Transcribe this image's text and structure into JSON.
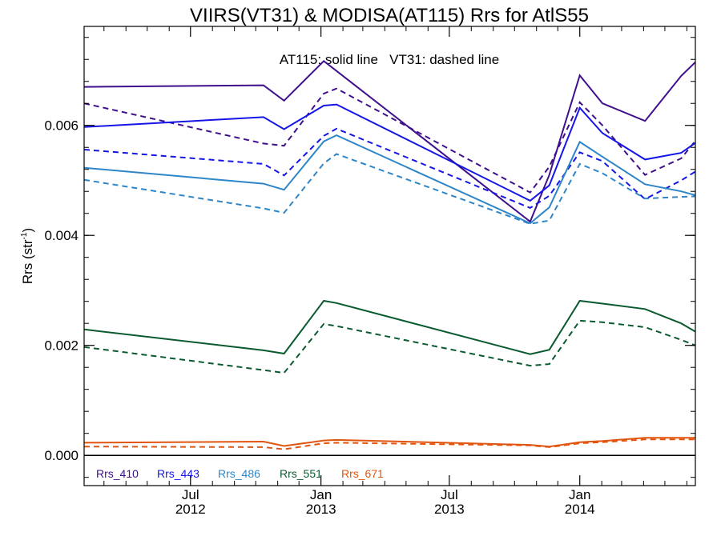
{
  "chart_data": {
    "type": "line",
    "title": "VIIRS(VT31) & MODISA(AT115)  Rrs for AtlS55",
    "annotation": "AT115: solid line   VT31: dashed line",
    "ylabel": "Rrs (str",
    "ylabel_superscript": "-1",
    "ylabel_close": ")",
    "ylim": [
      -0.00055,
      0.0078
    ],
    "xlim": [
      "2012-02-02",
      "2014-06-13"
    ],
    "y_ticks": [
      {
        "value": 0.0,
        "label": "0.000"
      },
      {
        "value": 0.002,
        "label": "0.002"
      },
      {
        "value": 0.004,
        "label": "0.004"
      },
      {
        "value": 0.006,
        "label": "0.006"
      }
    ],
    "y_minor_step": 0.0004,
    "x_ticks": [
      {
        "date": "2012-07-01",
        "month": "Jul",
        "year": "2012"
      },
      {
        "date": "2013-01-01",
        "month": "Jan",
        "year": "2013"
      },
      {
        "date": "2013-07-01",
        "month": "Jul",
        "year": "2013"
      },
      {
        "date": "2014-01-01",
        "month": "Jan",
        "year": "2014"
      }
    ],
    "x_minor_months": [
      "2012-03-01",
      "2012-04-01",
      "2012-05-01",
      "2012-06-01",
      "2012-08-01",
      "2012-09-01",
      "2012-10-01",
      "2012-11-01",
      "2012-12-01",
      "2013-02-01",
      "2013-03-01",
      "2013-04-01",
      "2013-05-01",
      "2013-06-01",
      "2013-08-01",
      "2013-09-01",
      "2013-10-01",
      "2013-11-01",
      "2013-12-01",
      "2014-02-01",
      "2014-03-01",
      "2014-04-01",
      "2014-05-01",
      "2014-06-01"
    ],
    "x_dates": [
      "2012-02-02",
      "2012-10-12",
      "2012-11-10",
      "2013-01-05",
      "2013-01-23",
      "2013-10-23",
      "2013-11-19",
      "2014-01-01",
      "2014-02-02",
      "2014-04-03",
      "2014-05-24",
      "2014-06-13"
    ],
    "series": [
      {
        "name": "Rrs_410",
        "color": "#3f0f8c",
        "style": "solid",
        "values": [
          0.0067,
          0.00673,
          0.00645,
          0.00717,
          0.00699,
          0.00425,
          0.0051,
          0.00691,
          0.0064,
          0.00608,
          0.0069,
          0.00715
        ]
      },
      {
        "name": "Rrs_410",
        "color": "#3f0f8c",
        "style": "dashed",
        "values": [
          0.0064,
          0.00567,
          0.00563,
          0.00658,
          0.00667,
          0.00478,
          0.00525,
          0.00642,
          0.006,
          0.0051,
          0.0054,
          0.00572
        ]
      },
      {
        "name": "Rrs_443",
        "color": "#1515e8",
        "style": "solid",
        "values": [
          0.00597,
          0.00615,
          0.00593,
          0.00636,
          0.00638,
          0.00463,
          0.00491,
          0.00632,
          0.00586,
          0.00538,
          0.0055,
          0.00568
        ]
      },
      {
        "name": "Rrs_443",
        "color": "#1515e8",
        "style": "dashed",
        "values": [
          0.00556,
          0.0053,
          0.00509,
          0.00581,
          0.00594,
          0.0045,
          0.00472,
          0.00551,
          0.00535,
          0.00466,
          0.005,
          0.00516
        ]
      },
      {
        "name": "Rrs_486",
        "color": "#2e86c8",
        "style": "solid",
        "values": [
          0.00523,
          0.00494,
          0.00483,
          0.00571,
          0.00582,
          0.00422,
          0.00451,
          0.0057,
          0.00543,
          0.00493,
          0.0048,
          0.00473
        ]
      },
      {
        "name": "Rrs_486",
        "color": "#2e86c8",
        "style": "dashed",
        "values": [
          0.00501,
          0.00449,
          0.00441,
          0.00531,
          0.00548,
          0.00421,
          0.00427,
          0.0053,
          0.00513,
          0.00467,
          0.0047,
          0.00471
        ]
      },
      {
        "name": "Rrs_551",
        "color": "#0a5a30",
        "style": "solid",
        "values": [
          0.00229,
          0.00191,
          0.00185,
          0.00281,
          0.00277,
          0.00184,
          0.00192,
          0.00281,
          0.00276,
          0.00266,
          0.0024,
          0.00225
        ]
      },
      {
        "name": "Rrs_551",
        "color": "#0a5a30",
        "style": "dashed",
        "values": [
          0.00197,
          0.00155,
          0.0015,
          0.00239,
          0.00235,
          0.00163,
          0.00166,
          0.00245,
          0.00242,
          0.00233,
          0.0021,
          0.002
        ]
      },
      {
        "name": "Rrs_671",
        "color": "#e05510",
        "style": "solid",
        "values": [
          0.00023,
          0.00025,
          0.00017,
          0.00027,
          0.00028,
          0.00019,
          0.00016,
          0.00024,
          0.00026,
          0.00032,
          0.00032,
          0.00032
        ]
      },
      {
        "name": "Rrs_671",
        "color": "#e05510",
        "style": "dashed",
        "values": [
          0.00016,
          0.00015,
          0.00011,
          0.00022,
          0.00023,
          0.00018,
          0.00015,
          0.00022,
          0.00024,
          0.00029,
          0.00029,
          0.00029
        ]
      }
    ],
    "legend": [
      {
        "label": "Rrs_410",
        "color": "#3f0f8c"
      },
      {
        "label": "Rrs_443",
        "color": "#1515e8"
      },
      {
        "label": "Rrs_486",
        "color": "#2e86c8"
      },
      {
        "label": "Rrs_551",
        "color": "#0a5a30"
      },
      {
        "label": "Rrs_671",
        "color": "#e05510"
      }
    ],
    "legend_placement": "bottom-left",
    "zero_line": true,
    "grid": false
  }
}
